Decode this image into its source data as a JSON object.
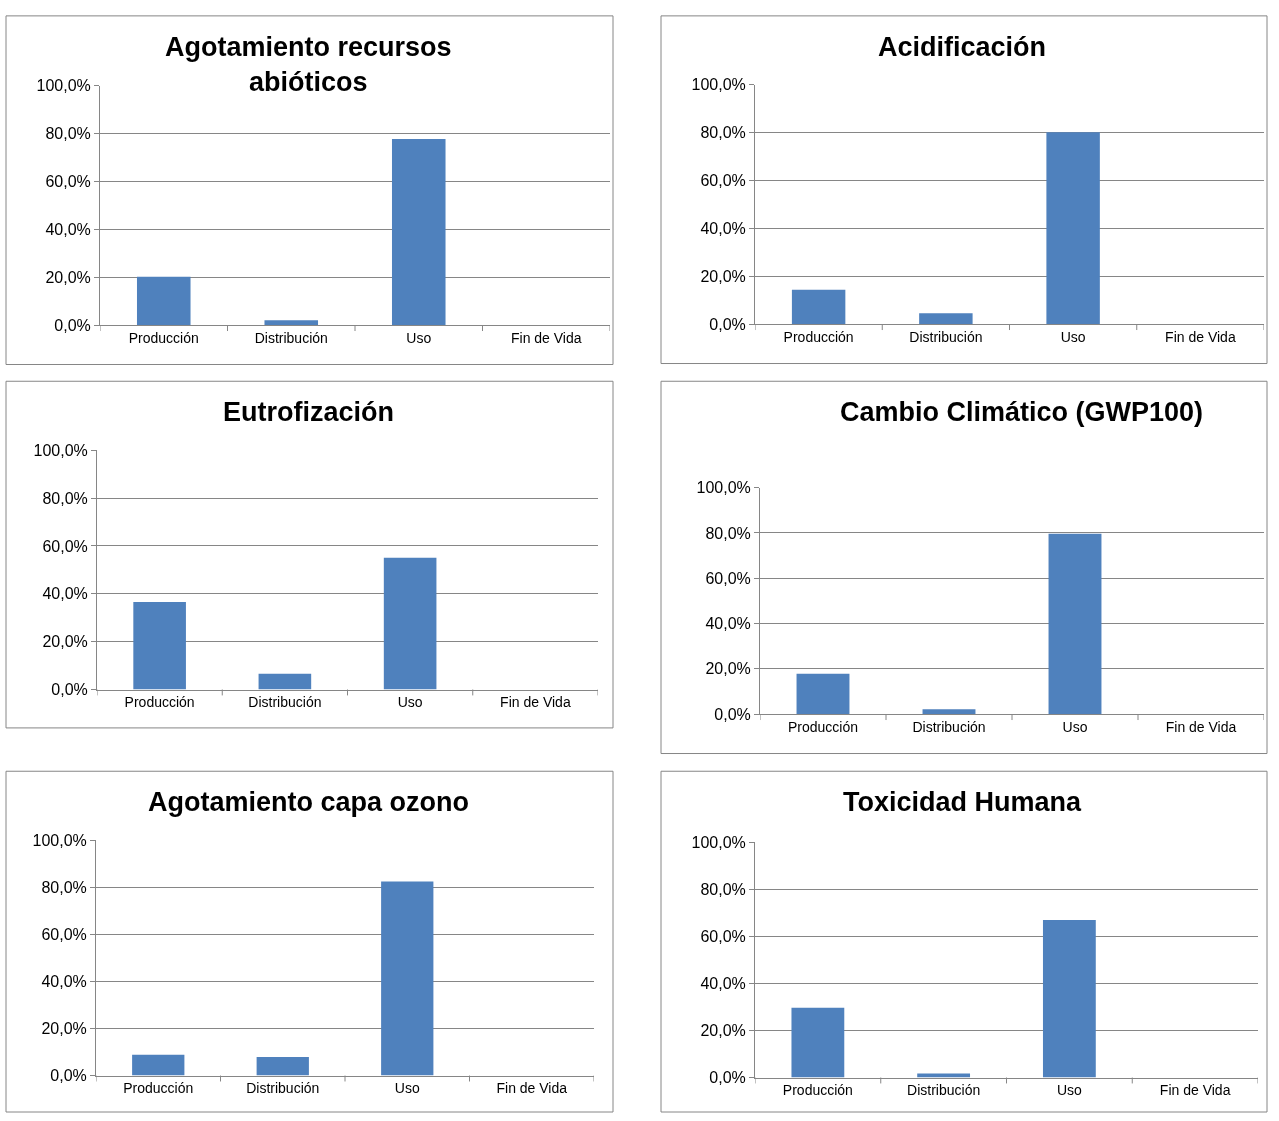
{
  "chart_data": [
    {
      "type": "bar",
      "title": "Agotamiento recursos abióticos",
      "categories": [
        "Producción",
        "Distribución",
        "Uso",
        "Fin de Vida"
      ],
      "values": [
        20.2,
        2,
        77.8,
        0
      ],
      "color": "#4f81bd",
      "ylim": [
        0,
        100
      ],
      "yticks": [
        {
          "value": 0,
          "label": "0,0%"
        },
        {
          "value": 20,
          "label": "20,0%"
        },
        {
          "value": 40,
          "label": "40,0%"
        },
        {
          "value": 60,
          "label": "60,0%"
        },
        {
          "value": 80,
          "label": "80,0%"
        },
        {
          "value": 100,
          "label": "100,0%"
        }
      ],
      "grid": "y"
    },
    {
      "type": "bar",
      "title": "Acidificación",
      "categories": [
        "Producción",
        "Distribución",
        "Uso",
        "Fin de Vida"
      ],
      "values": [
        14.4,
        4.5,
        80.2,
        0
      ],
      "color": "#4f81bd",
      "ylim": [
        0,
        100
      ],
      "yticks": [
        {
          "value": 0,
          "label": "0,0%"
        },
        {
          "value": 20,
          "label": "20,0%"
        },
        {
          "value": 40,
          "label": "40,0%"
        },
        {
          "value": 60,
          "label": "60,0%"
        },
        {
          "value": 80,
          "label": "80,0%"
        },
        {
          "value": 100,
          "label": "100,0%"
        }
      ],
      "grid": "y"
    },
    {
      "type": "bar",
      "title": "Eutrofización",
      "categories": [
        "Producción",
        "Distribución",
        "Uso",
        "Fin de Vida"
      ],
      "values": [
        36.6,
        6.6,
        55.1,
        0
      ],
      "color": "#4f81bd",
      "ylim": [
        0,
        100
      ],
      "yticks": [
        {
          "value": 0,
          "label": "0,0%"
        },
        {
          "value": 20,
          "label": "20,0%"
        },
        {
          "value": 40,
          "label": "40,0%"
        },
        {
          "value": 60,
          "label": "60,0%"
        },
        {
          "value": 80,
          "label": "80,0%"
        },
        {
          "value": 100,
          "label": "100,0%"
        }
      ],
      "grid": "y"
    },
    {
      "type": "bar",
      "title": "Cambio Climático (GWP100)",
      "categories": [
        "Producción",
        "Distribución",
        "Uso",
        "Fin de Vida"
      ],
      "values": [
        17.8,
        2.2,
        79.6,
        0
      ],
      "color": "#4f81bd",
      "ylim": [
        0,
        100
      ],
      "yticks": [
        {
          "value": 0,
          "label": "0,0%"
        },
        {
          "value": 20,
          "label": "20,0%"
        },
        {
          "value": 40,
          "label": "40,0%"
        },
        {
          "value": 60,
          "label": "60,0%"
        },
        {
          "value": 80,
          "label": "80,0%"
        },
        {
          "value": 100,
          "label": "100,0%"
        }
      ],
      "grid": "y"
    },
    {
      "type": "bar",
      "title": "Agotamiento capa ozono",
      "categories": [
        "Producción",
        "Distribución",
        "Uso",
        "Fin de Vida"
      ],
      "values": [
        8.8,
        7.9,
        82.4,
        0
      ],
      "color": "#4f81bd",
      "ylim": [
        0,
        100
      ],
      "yticks": [
        {
          "value": 0,
          "label": "0,0%"
        },
        {
          "value": 20,
          "label": "20,0%"
        },
        {
          "value": 40,
          "label": "40,0%"
        },
        {
          "value": 60,
          "label": "60,0%"
        },
        {
          "value": 80,
          "label": "80,0%"
        },
        {
          "value": 100,
          "label": "100,0%"
        }
      ],
      "grid": "y"
    },
    {
      "type": "bar",
      "title": "Toxicidad Humana",
      "categories": [
        "Producción",
        "Distribución",
        "Uso",
        "Fin de Vida"
      ],
      "values": [
        29.7,
        1.7,
        66.9,
        0
      ],
      "color": "#4f81bd",
      "ylim": [
        0,
        100
      ],
      "yticks": [
        {
          "value": 0,
          "label": "0,0%"
        },
        {
          "value": 20,
          "label": "20,0%"
        },
        {
          "value": 40,
          "label": "40,0%"
        },
        {
          "value": 60,
          "label": "60,0%"
        },
        {
          "value": 80,
          "label": "80,0%"
        },
        {
          "value": 100,
          "label": "100,0%"
        }
      ],
      "grid": "y"
    }
  ]
}
